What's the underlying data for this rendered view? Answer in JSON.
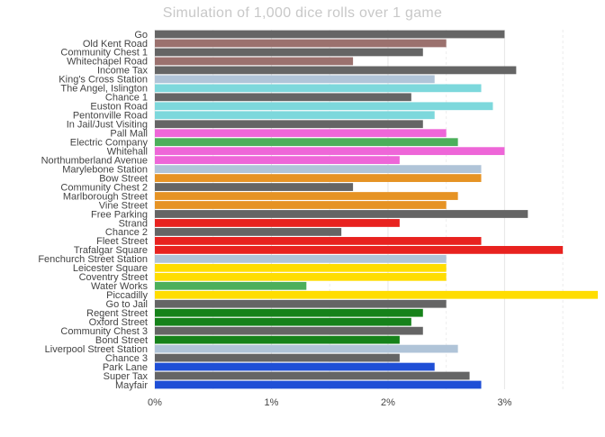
{
  "chart_data": {
    "type": "bar",
    "orientation": "horizontal",
    "title": "Simulation of 1,000 dice rolls over 1 game",
    "xlabel": "",
    "ylabel": "",
    "xlim": [
      0,
      3.8
    ],
    "x_ticks": [
      0,
      1,
      2,
      3
    ],
    "x_tick_labels": [
      "0%",
      "1%",
      "2%",
      "3%"
    ],
    "grid": "vertical, light",
    "categories": [
      "Go",
      "Old Kent Road",
      "Community Chest 1",
      "Whitechapel Road",
      "Income Tax",
      "King's Cross Station",
      "The Angel, Islington",
      "Chance 1",
      "Euston Road",
      "Pentonville Road",
      "In Jail/Just Visiting",
      "Pall Mall",
      "Electric Company",
      "Whitehall",
      "Northumberland Avenue",
      "Marylebone Station",
      "Bow Street",
      "Community Chest 2",
      "Marlborough Street",
      "Vine Street",
      "Free Parking",
      "Strand",
      "Chance 2",
      "Fleet Street",
      "Trafalgar Square",
      "Fenchurch Street Station",
      "Leicester Square",
      "Coventry Street",
      "Water Works",
      "Piccadilly",
      "Go to Jail",
      "Regent Street",
      "Oxford Street",
      "Community Chest 3",
      "Bond Street",
      "Liverpool Street Station",
      "Chance 3",
      "Park Lane",
      "Super Tax",
      "Mayfair"
    ],
    "values": [
      3.0,
      2.5,
      2.3,
      1.7,
      3.1,
      2.4,
      2.8,
      2.2,
      2.9,
      2.4,
      2.3,
      2.5,
      2.6,
      3.0,
      2.1,
      2.8,
      2.8,
      1.7,
      2.6,
      2.5,
      3.2,
      2.1,
      1.6,
      2.8,
      3.5,
      2.5,
      2.5,
      2.5,
      1.3,
      3.8,
      2.5,
      2.3,
      2.2,
      2.3,
      2.1,
      2.6,
      2.1,
      2.4,
      2.7,
      2.8
    ],
    "colors": [
      "#656565",
      "#9b716e",
      "#656565",
      "#9b716e",
      "#656565",
      "#b0c4d8",
      "#7dd8dc",
      "#656565",
      "#7dd8dc",
      "#7dd8dc",
      "#656565",
      "#ee66d8",
      "#4caf5b",
      "#ee66d8",
      "#ee66d8",
      "#b0c4d8",
      "#e69324",
      "#656565",
      "#e69324",
      "#e69324",
      "#656565",
      "#e8221f",
      "#656565",
      "#e8221f",
      "#e8221f",
      "#b0c4d8",
      "#ffdd00",
      "#ffdd00",
      "#4caf5b",
      "#ffdd00",
      "#656565",
      "#16821a",
      "#16821a",
      "#656565",
      "#16821a",
      "#b0c4d8",
      "#656565",
      "#1f4fd6",
      "#656565",
      "#1f4fd6"
    ]
  }
}
